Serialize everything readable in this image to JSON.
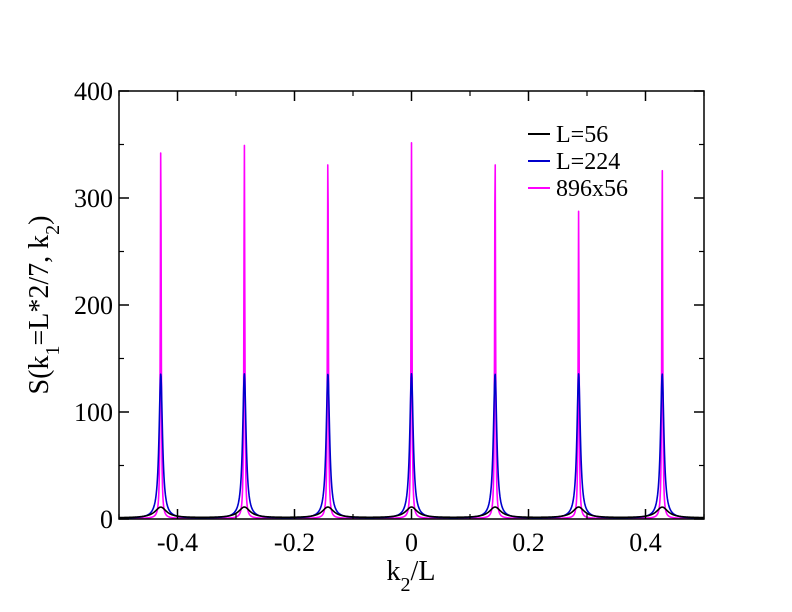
{
  "chart_data": {
    "type": "line",
    "title": "",
    "xlabel": "k_2/L",
    "ylabel": "S(k_1=L*2/7, k_2)",
    "xlim": [
      -0.5,
      0.5
    ],
    "ylim": [
      0,
      400
    ],
    "x_ticks": [
      -0.4,
      -0.2,
      0,
      0.2,
      0.4
    ],
    "x_tick_labels": [
      "-0.4",
      "-0.2",
      "0",
      "0.2",
      "0.4"
    ],
    "y_ticks": [
      0,
      100,
      200,
      300,
      400
    ],
    "y_tick_labels": [
      "0",
      "100",
      "200",
      "300",
      "400"
    ],
    "grid": false,
    "legend_position": "top-right",
    "peak_positions": [
      -0.4286,
      -0.2857,
      -0.1429,
      0,
      0.1429,
      0.2857,
      0.4286
    ],
    "series": [
      {
        "name": "L=56",
        "color": "#000000",
        "peak_values": [
          12,
          12,
          12,
          12,
          12,
          12,
          12
        ],
        "width": 0.012,
        "baseline": 2
      },
      {
        "name": "L=224",
        "color": "#0000cc",
        "peak_values": [
          136,
          136,
          136,
          136,
          136,
          136,
          136
        ],
        "width": 0.0035,
        "baseline": 1
      },
      {
        "name": "896x56",
        "color": "#ff00ff",
        "peak_values": [
          352,
          352,
          352,
          352,
          352,
          290,
          335
        ],
        "width": 0.0009,
        "baseline": 1
      }
    ]
  }
}
